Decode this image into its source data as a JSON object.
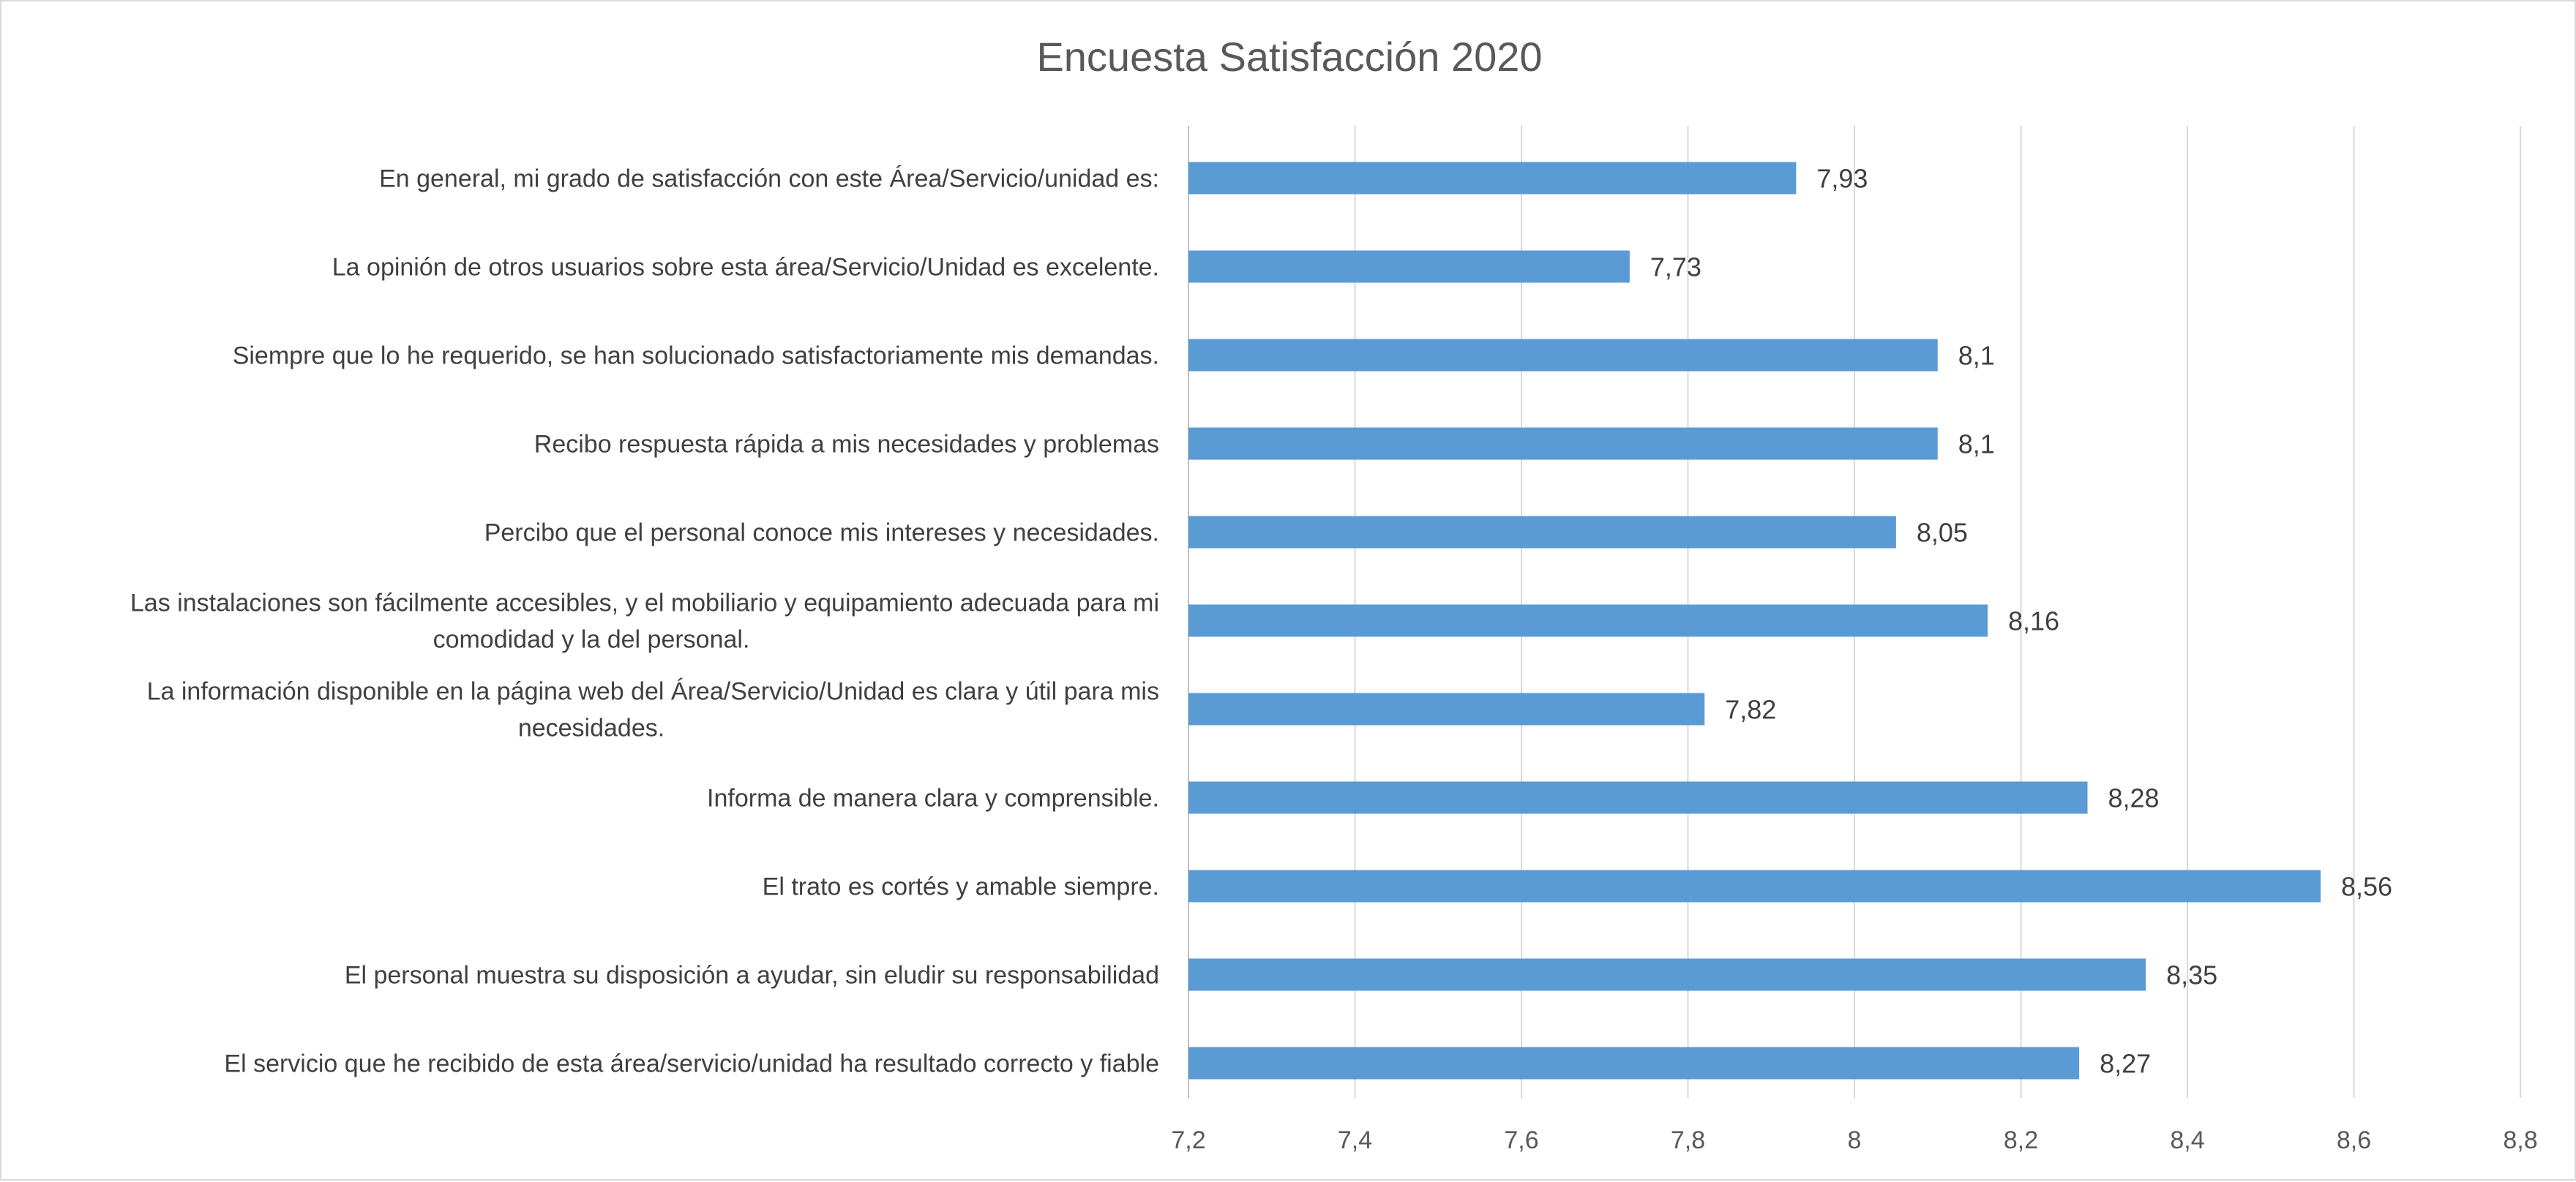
{
  "chart_data": {
    "type": "bar",
    "orientation": "horizontal",
    "title": "Encuesta Satisfacción 2020",
    "xlabel": "",
    "ylabel": "",
    "xlim": [
      7.2,
      8.8
    ],
    "x_ticks": [
      "7,2",
      "7,4",
      "7,6",
      "7,8",
      "8",
      "8,2",
      "8,4",
      "8,6",
      "8,8"
    ],
    "x_tick_values": [
      7.2,
      7.4,
      7.6,
      7.8,
      8.0,
      8.2,
      8.4,
      8.6,
      8.8
    ],
    "grid": true,
    "legend": "none",
    "bar_color": "#5B9BD5",
    "categories": [
      [
        "En general, mi grado de satisfacción con este Área/Servicio/unidad es:"
      ],
      [
        "La opinión de otros usuarios sobre esta área/Servicio/Unidad es excelente."
      ],
      [
        "Siempre que lo he requerido, se han solucionado satisfactoriamente mis demandas."
      ],
      [
        "Recibo respuesta rápida a mis necesidades y problemas"
      ],
      [
        "Percibo que el personal conoce mis intereses y necesidades."
      ],
      [
        "Las instalaciones son fácilmente accesibles, y el mobiliario y equipamiento adecuada para mi",
        "comodidad y la del personal."
      ],
      [
        "La información disponible en la página web del Área/Servicio/Unidad es clara y útil para mis",
        "necesidades."
      ],
      [
        "Informa de manera clara y comprensible."
      ],
      [
        "El trato es cortés y amable siempre."
      ],
      [
        "El personal muestra su disposición a ayudar, sin eludir su responsabilidad"
      ],
      [
        "El servicio que he recibido de esta área/servicio/unidad ha resultado correcto y fiable"
      ]
    ],
    "values": [
      7.93,
      7.73,
      8.1,
      8.1,
      8.05,
      8.16,
      7.82,
      8.28,
      8.56,
      8.35,
      8.27
    ],
    "data_labels": [
      "7,93",
      "7,73",
      "8,1",
      "8,1",
      "8,05",
      "8,16",
      "7,82",
      "8,28",
      "8,56",
      "8,35",
      "8,27"
    ]
  }
}
